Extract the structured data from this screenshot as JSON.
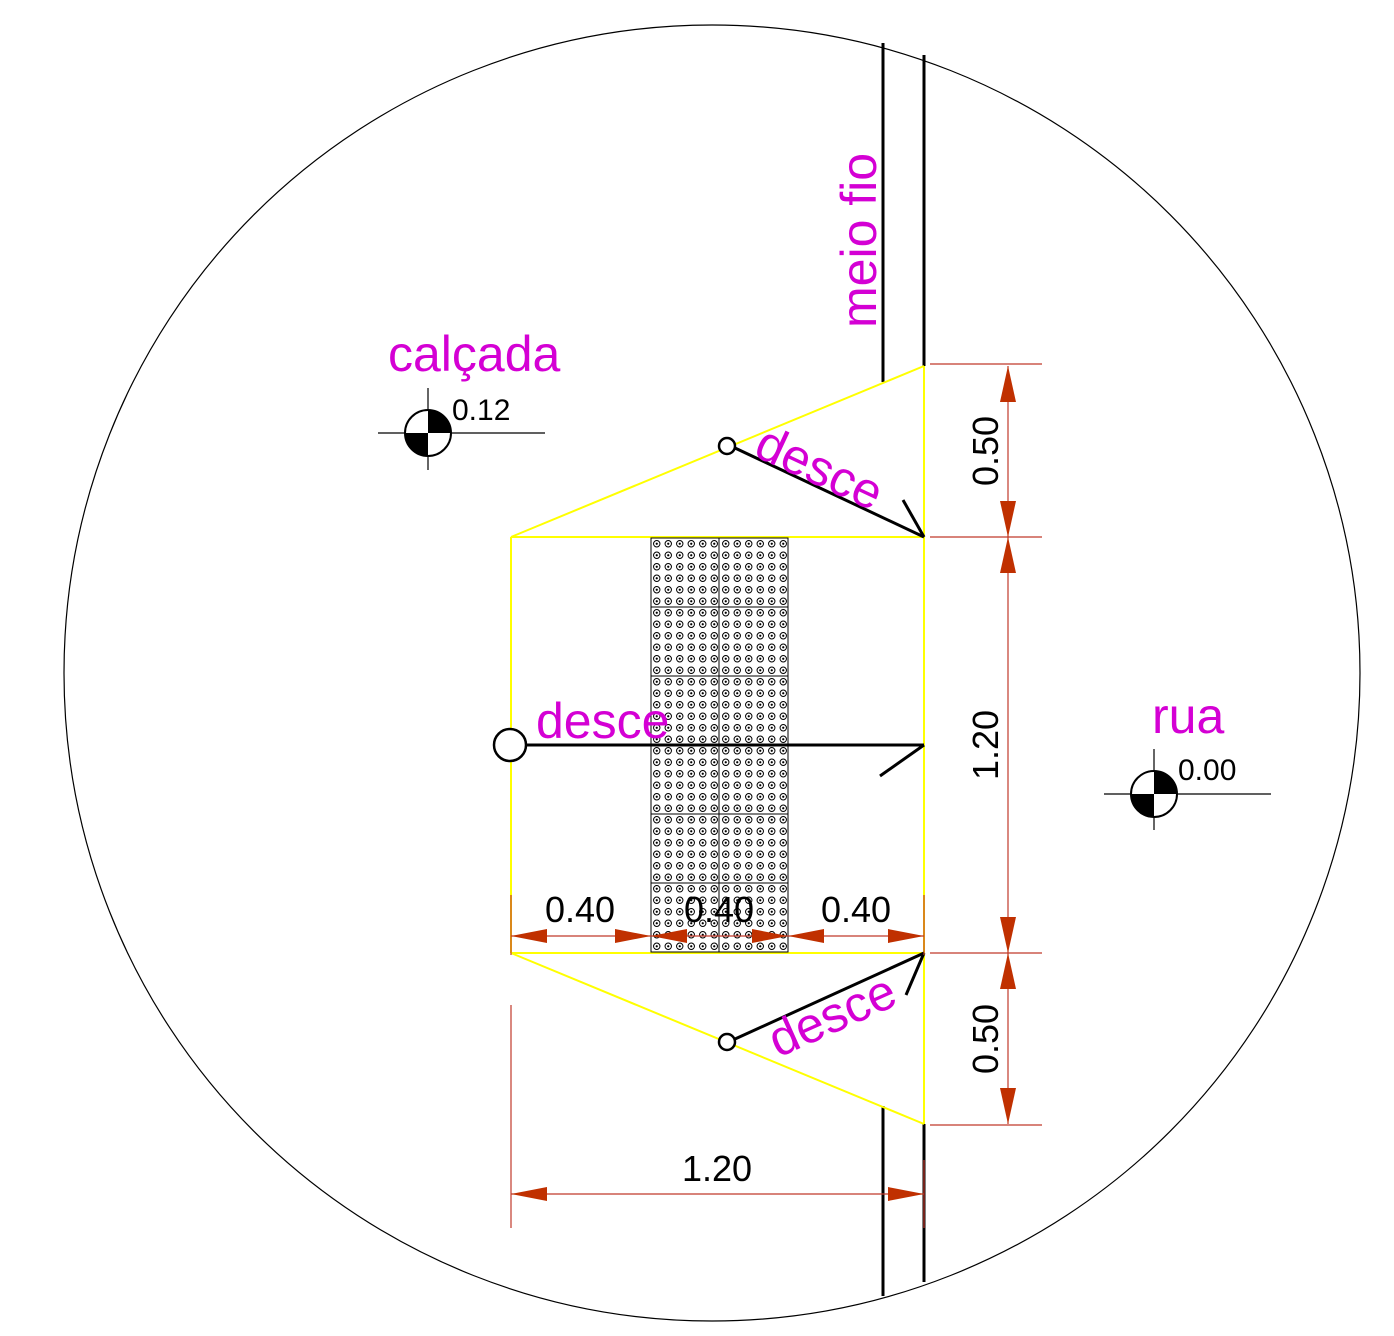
{
  "colors": {
    "label": "#d400d4",
    "ramp_outline": "#ffff00",
    "dimension": "#c0392b",
    "arrow": "#c03000",
    "line": "#000000"
  },
  "labels": {
    "meio_fio": "meio fio",
    "calcada": "calçada",
    "rua": "rua",
    "desce_top": "desce",
    "desce_mid": "desce",
    "desce_bottom": "desce"
  },
  "levels": {
    "calcada": "0.12",
    "rua": "0.00"
  },
  "dimensions": {
    "vertical": [
      "0.50",
      "1.20",
      "0.50"
    ],
    "horizontal_parts": [
      "0.40",
      "0.40",
      "0.40"
    ],
    "horizontal_total": "1.20"
  },
  "icons": {
    "level_marker": "level-marker-icon",
    "slope_origin": "circle-icon",
    "tactile_floor": "tactile-paving-pattern"
  }
}
